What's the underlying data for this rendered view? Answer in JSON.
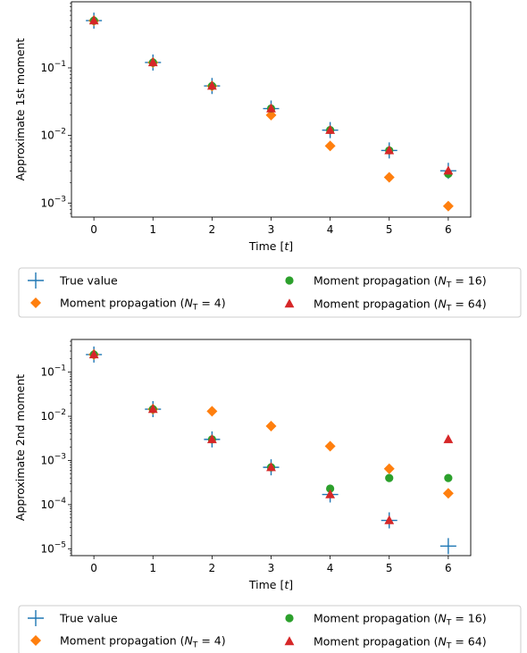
{
  "colors": {
    "true_value": "#1f77b4",
    "np4": "#ff7f0e",
    "np16": "#2ca02c",
    "np64": "#d62728"
  },
  "chart_data": [
    {
      "type": "scatter",
      "xlabel_main": "Time [",
      "xlabel_var": "t",
      "xlabel_end": "]",
      "ylabel": "Approximate 1st moment",
      "yscale": "log",
      "xlim": [
        -0.38,
        6.38
      ],
      "ylim": [
        0.00062,
        0.95
      ],
      "x_ticks": [
        "0",
        "1",
        "2",
        "3",
        "4",
        "5",
        "6"
      ],
      "y_ticks": [
        {
          "value": 0.1,
          "base": "10",
          "exp": "−1"
        },
        {
          "value": 0.01,
          "base": "10",
          "exp": "−2"
        },
        {
          "value": 0.001,
          "base": "10",
          "exp": "−3"
        }
      ],
      "series": [
        {
          "key": "true",
          "marker": "plus",
          "x": [
            0,
            1,
            2,
            3,
            4,
            5,
            6
          ],
          "y": [
            0.5,
            0.12,
            0.054,
            0.025,
            0.012,
            0.006,
            0.003
          ]
        },
        {
          "key": "np4",
          "marker": "diamond",
          "x": [
            0,
            1,
            2,
            3,
            4,
            5,
            6
          ],
          "y": [
            0.5,
            0.12,
            0.054,
            0.02,
            0.007,
            0.0024,
            0.0009
          ]
        },
        {
          "key": "np16",
          "marker": "circle",
          "x": [
            0,
            1,
            2,
            3,
            4,
            5,
            6
          ],
          "y": [
            0.5,
            0.12,
            0.054,
            0.025,
            0.012,
            0.006,
            0.0027
          ]
        },
        {
          "key": "np64",
          "marker": "triangle",
          "x": [
            0,
            1,
            2,
            3,
            4,
            5,
            6
          ],
          "y": [
            0.5,
            0.12,
            0.054,
            0.025,
            0.012,
            0.006,
            0.003
          ]
        }
      ],
      "legend": {
        "true_label": "True value",
        "np4_prefix": "Moment propagation (",
        "np4_suffix": " = 4)",
        "np16_prefix": "Moment propagation (",
        "np16_suffix": " = 16)",
        "np64_prefix": "Moment propagation (",
        "np64_suffix": " = 64)",
        "n_symbol": "N",
        "n_subscript": "T"
      }
    },
    {
      "type": "scatter",
      "xlabel_main": "Time [",
      "xlabel_var": "t",
      "xlabel_end": "]",
      "ylabel": "Approximate 2nd moment",
      "yscale": "log",
      "xlim": [
        -0.38,
        6.38
      ],
      "ylim": [
        7e-06,
        0.55
      ],
      "x_ticks": [
        "0",
        "1",
        "2",
        "3",
        "4",
        "5",
        "6"
      ],
      "y_ticks": [
        {
          "value": 0.1,
          "base": "10",
          "exp": "−1"
        },
        {
          "value": 0.01,
          "base": "10",
          "exp": "−2"
        },
        {
          "value": 0.001,
          "base": "10",
          "exp": "−3"
        },
        {
          "value": 0.0001,
          "base": "10",
          "exp": "−4"
        },
        {
          "value": 1e-05,
          "base": "10",
          "exp": "−5"
        }
      ],
      "series": [
        {
          "key": "true",
          "marker": "plus",
          "x": [
            0,
            1,
            2,
            3,
            4,
            5,
            6
          ],
          "y": [
            0.25,
            0.0145,
            0.003,
            0.0007,
            0.00017,
            4.4e-05,
            1.15e-05
          ]
        },
        {
          "key": "np4",
          "marker": "diamond",
          "x": [
            0,
            1,
            2,
            3,
            4,
            5,
            6
          ],
          "y": [
            0.25,
            0.0145,
            0.013,
            0.006,
            0.0021,
            0.00065,
            0.00018
          ]
        },
        {
          "key": "np16",
          "marker": "circle",
          "x": [
            0,
            1,
            2,
            3,
            4,
            5,
            6
          ],
          "y": [
            0.25,
            0.0145,
            0.003,
            0.0007,
            0.00023,
            0.0004,
            0.0004
          ]
        },
        {
          "key": "np64",
          "marker": "triangle",
          "x": [
            0,
            1,
            2,
            3,
            4,
            5,
            6
          ],
          "y": [
            0.25,
            0.0145,
            0.003,
            0.0007,
            0.00017,
            4.4e-05,
            0.003
          ]
        }
      ],
      "legend": {
        "true_label": "True value",
        "np4_prefix": "Moment propagation (",
        "np4_suffix": " = 4)",
        "np16_prefix": "Moment propagation (",
        "np16_suffix": " = 16)",
        "np64_prefix": "Moment propagation (",
        "np64_suffix": " = 64)",
        "n_symbol": "N",
        "n_subscript": "T"
      }
    }
  ]
}
